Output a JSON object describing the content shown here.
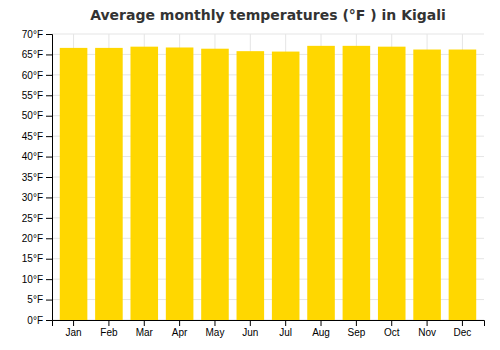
{
  "chart_data": {
    "type": "bar",
    "title": "Average monthly temperatures (°F ) in Kigali",
    "categories": [
      "Jan",
      "Feb",
      "Mar",
      "Apr",
      "May",
      "Jun",
      "Jul",
      "Aug",
      "Sep",
      "Oct",
      "Nov",
      "Dec"
    ],
    "values": [
      66.6,
      66.6,
      66.9,
      66.7,
      66.4,
      65.8,
      65.7,
      67.1,
      67.1,
      66.9,
      66.2,
      66.2
    ],
    "color": "#FFD700",
    "ylim": [
      0,
      70
    ],
    "yticks": [
      {
        "value": 0,
        "label": "0°F"
      },
      {
        "value": 5,
        "label": "5°F"
      },
      {
        "value": 10,
        "label": "10°F"
      },
      {
        "value": 15,
        "label": "15°F"
      },
      {
        "value": 20,
        "label": "20°F"
      },
      {
        "value": 25,
        "label": "25°F"
      },
      {
        "value": 30,
        "label": "30°F"
      },
      {
        "value": 35,
        "label": "35°F"
      },
      {
        "value": 40,
        "label": "40°F"
      },
      {
        "value": 45,
        "label": "45°F"
      },
      {
        "value": 50,
        "label": "50°F"
      },
      {
        "value": 55,
        "label": "55°F"
      },
      {
        "value": 60,
        "label": "60°F"
      },
      {
        "value": 65,
        "label": "65°F"
      },
      {
        "value": 70,
        "label": "70°F"
      }
    ],
    "grid": true
  }
}
